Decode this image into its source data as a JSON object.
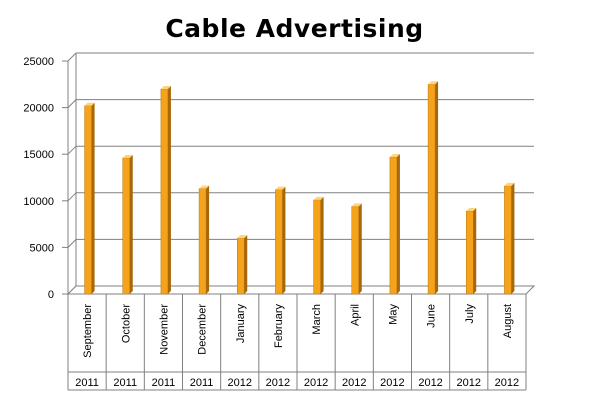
{
  "chart_data": {
    "type": "bar",
    "title": "Cable Advertising",
    "categories": [
      {
        "month": "September",
        "year": "2011"
      },
      {
        "month": "October",
        "year": "2011"
      },
      {
        "month": "November",
        "year": "2011"
      },
      {
        "month": "December",
        "year": "2011"
      },
      {
        "month": "January",
        "year": "2012"
      },
      {
        "month": "February",
        "year": "2012"
      },
      {
        "month": "March",
        "year": "2012"
      },
      {
        "month": "April",
        "year": "2012"
      },
      {
        "month": "May",
        "year": "2012"
      },
      {
        "month": "June",
        "year": "2012"
      },
      {
        "month": "July",
        "year": "2012"
      },
      {
        "month": "August",
        "year": "2012"
      }
    ],
    "values": [
      20200,
      14600,
      22000,
      11300,
      6000,
      11200,
      10100,
      9400,
      14700,
      22500,
      8900,
      11600
    ],
    "yticks": [
      "0",
      "5000",
      "10000",
      "15000",
      "20000",
      "25000"
    ],
    "ylim": [
      0,
      25000
    ],
    "grid": true,
    "legend": "none",
    "colors": {
      "bar_front": "#f6a31c",
      "bar_side": "#a76808",
      "bar_top": "#ffd37a",
      "grid": "#808080",
      "axis": "#808080"
    }
  }
}
